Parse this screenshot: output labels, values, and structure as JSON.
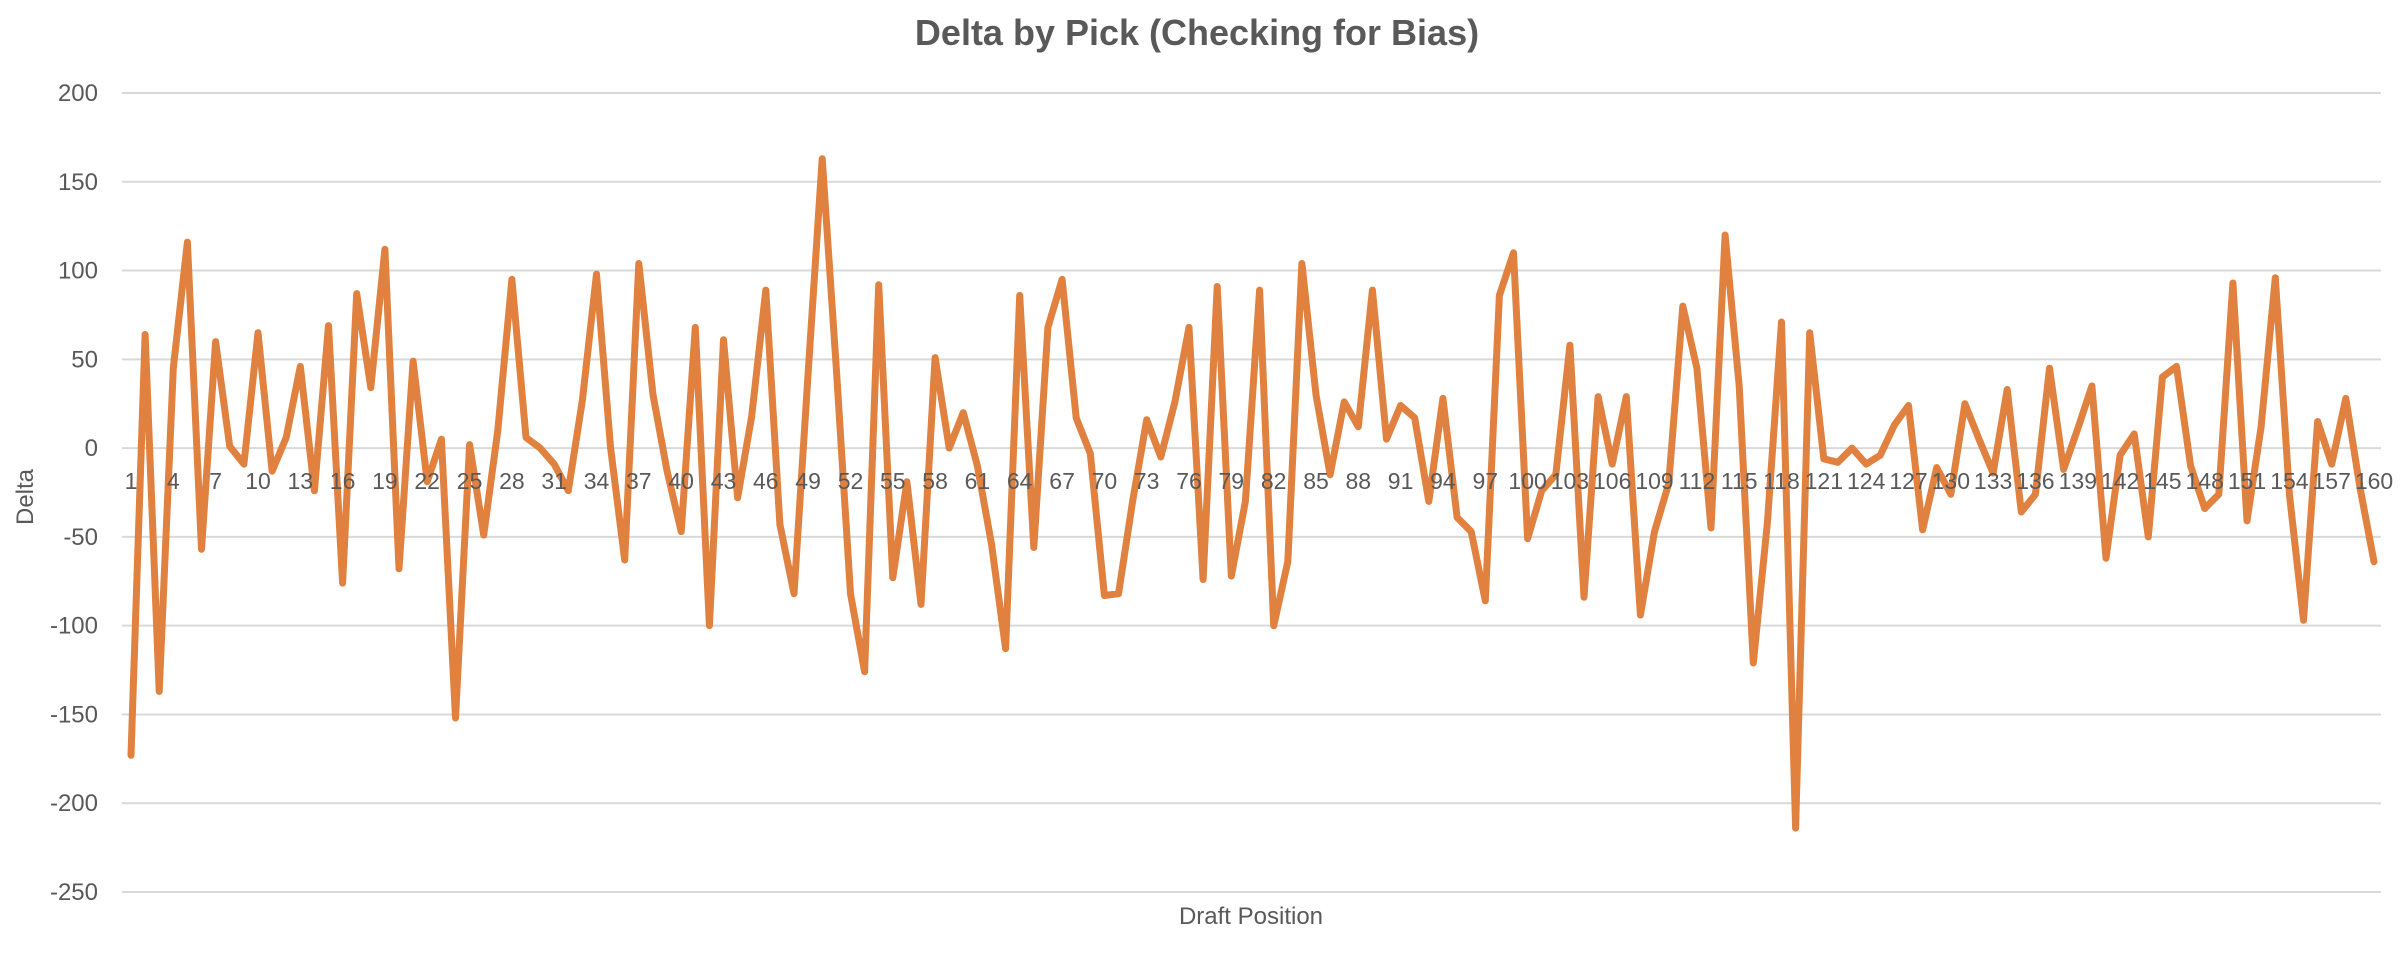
{
  "chart_data": {
    "type": "line",
    "title": "Delta by Pick (Checking for Bias)",
    "xlabel": "Draft Position",
    "ylabel": "Delta",
    "ylim": [
      -250,
      200
    ],
    "y_ticks": [
      200,
      150,
      100,
      50,
      0,
      -50,
      -100,
      -150,
      -200,
      -250
    ],
    "x_tick_labels": [
      "1",
      "4",
      "7",
      "10",
      "13",
      "16",
      "19",
      "22",
      "25",
      "28",
      "31",
      "34",
      "37",
      "40",
      "43",
      "46",
      "49",
      "52",
      "55",
      "58",
      "61",
      "64",
      "67",
      "70",
      "73",
      "76",
      "79",
      "82",
      "85",
      "88",
      "91",
      "94",
      "97",
      "100",
      "103",
      "106",
      "109",
      "112",
      "115",
      "118",
      "121",
      "124",
      "127",
      "130",
      "133",
      "136",
      "139",
      "142",
      "145",
      "148",
      "151",
      "154",
      "157",
      "160"
    ],
    "grid": true,
    "legend": "none",
    "line_color": "#E0813F",
    "series": [
      {
        "x": [
          1,
          2,
          3,
          4,
          5,
          6,
          7,
          8,
          9,
          10,
          11,
          12,
          13,
          14,
          15,
          16,
          17,
          18,
          19,
          20,
          21,
          22,
          23,
          24,
          25,
          26,
          27,
          28,
          29,
          30,
          31,
          32,
          33,
          34,
          35,
          36,
          37,
          38,
          39,
          40,
          41,
          42,
          43,
          44,
          45,
          46,
          47,
          48,
          49,
          50,
          51,
          52,
          53,
          54,
          55,
          56,
          57,
          58,
          59,
          60,
          61,
          62,
          63,
          64,
          65,
          66,
          67,
          68,
          69,
          70,
          71,
          72,
          73,
          74,
          75,
          76,
          77,
          78,
          79,
          80,
          81,
          82,
          83,
          84,
          85,
          86,
          87,
          88,
          89,
          90,
          91,
          92,
          93,
          94,
          95,
          96,
          97,
          98,
          99,
          100,
          101,
          102,
          103,
          104,
          105,
          106,
          107,
          108,
          109,
          110,
          111,
          112,
          113,
          114,
          115,
          116,
          117,
          118,
          119,
          120,
          121,
          122,
          123,
          124,
          125,
          126,
          127,
          128,
          129,
          130,
          131,
          132,
          133,
          134,
          135,
          136,
          137,
          138,
          139,
          140,
          141,
          142,
          143,
          144,
          145,
          146,
          147,
          148,
          149,
          150,
          151,
          152,
          153,
          154,
          155,
          156,
          157,
          158,
          159,
          160
        ],
        "values": [
          -173,
          64,
          -137,
          45,
          116,
          -57,
          60,
          1,
          -9,
          65,
          -13,
          6,
          46,
          -24,
          69,
          -76,
          87,
          34,
          112,
          -68,
          49,
          -19,
          5,
          -152,
          2,
          -49,
          10,
          95,
          6,
          0,
          -9,
          -24,
          27,
          98,
          0,
          -63,
          104,
          30,
          -13,
          -47,
          68,
          -100,
          61,
          -28,
          18,
          89,
          -43,
          -82,
          42,
          163,
          45,
          -82,
          -126,
          92,
          -73,
          -19,
          -88,
          51,
          0,
          20,
          -10,
          -54,
          -113,
          86,
          -56,
          68,
          95,
          17,
          -3,
          -83,
          -82,
          -30,
          16,
          -5,
          26,
          68,
          -74,
          91,
          -72,
          -30,
          89,
          -100,
          -64,
          104,
          30,
          -15,
          26,
          12,
          89,
          5,
          24,
          17,
          -30,
          28,
          -39,
          -47,
          -86,
          86,
          110,
          -51,
          -24,
          -15,
          58,
          -84,
          29,
          -9,
          29,
          -94,
          -47,
          -20,
          80,
          45,
          -45,
          120,
          35,
          -121,
          -42,
          71,
          -214,
          65,
          -6,
          -8,
          0,
          -9,
          -4,
          13,
          24,
          -46,
          -11,
          -26,
          25,
          5,
          -14,
          33,
          -36,
          -26,
          45,
          -12,
          11,
          35,
          -62,
          -4,
          8,
          -50,
          40,
          46,
          -10,
          -34,
          -26,
          93,
          -41,
          12,
          96,
          -26,
          -97,
          15,
          -9,
          28,
          -22,
          -64
        ]
      }
    ]
  }
}
